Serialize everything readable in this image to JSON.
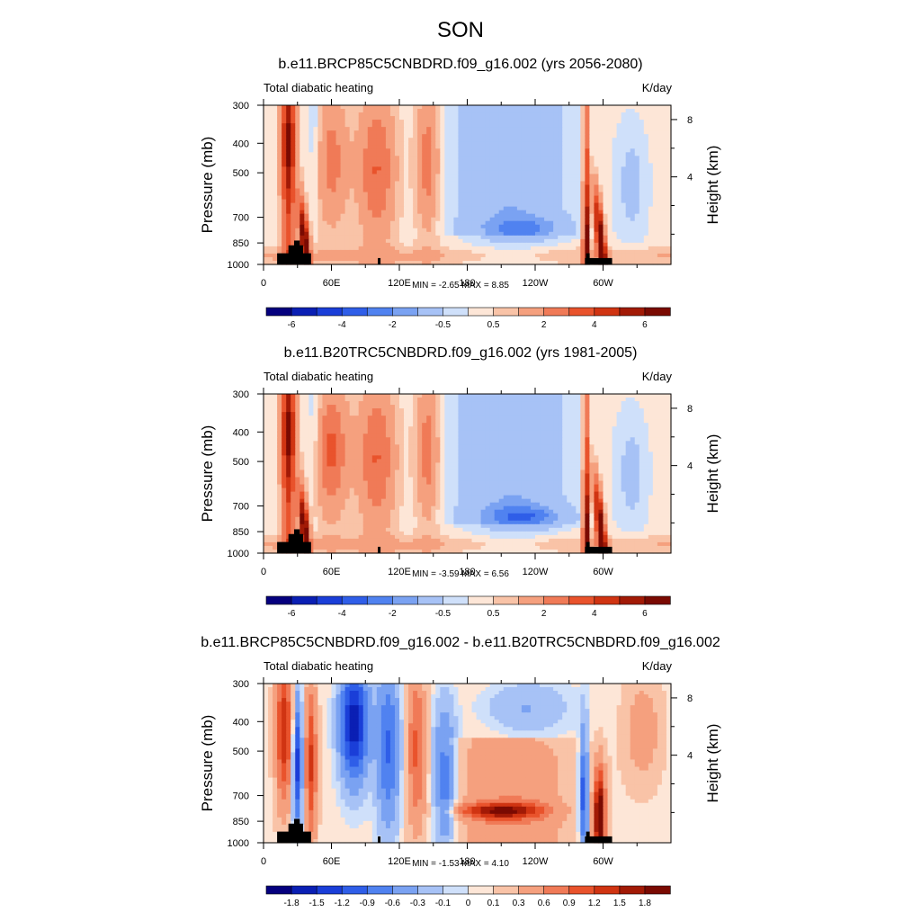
{
  "title": "SON",
  "color_palette_blue_to_red": [
    "#05007e",
    "#0a1fb4",
    "#1a3ed8",
    "#2f5ee8",
    "#5082f0",
    "#7aa2f2",
    "#a7c2f6",
    "#cfe0fa",
    "#fde6d7",
    "#f9c3a7",
    "#f5a07e",
    "#f07a57",
    "#e9532c",
    "#d03412",
    "#a21a06",
    "#7a0a02"
  ],
  "land_color": "#000000",
  "panels": [
    {
      "title": "b.e11.BRCP85C5CNBDRD.f09_g16.002 (yrs 2056-2080)",
      "left_string": "Total diabatic heating",
      "right_string": "K/day",
      "minmax": "MIN =  -2.65  MAX =   8.85",
      "chart_data": {
        "type": "heatmap",
        "variable": "Total diabatic heating",
        "units": "K/day",
        "ylabel": "Pressure (mb)",
        "ylabel_right": "Height (km)",
        "x_ticks": [
          "0",
          "60E",
          "120E",
          "180",
          "120W",
          "60W"
        ],
        "y_ticks": [
          "300",
          "400",
          "500",
          "700",
          "850",
          "1000"
        ],
        "y_ticks_right": [
          "8",
          "4"
        ],
        "colorbar_labels": [
          "-6",
          "-4",
          "-2",
          "-0.5",
          "0.5",
          "2",
          "4",
          "6"
        ],
        "min": -2.65,
        "max": 8.85
      }
    },
    {
      "title": "b.e11.B20TRC5CNBDRD.f09_g16.002 (yrs 1981-2005)",
      "left_string": "Total diabatic heating",
      "right_string": "K/day",
      "minmax": "MIN =  -3.59  MAX =   6.56",
      "chart_data": {
        "type": "heatmap",
        "variable": "Total diabatic heating",
        "units": "K/day",
        "ylabel": "Pressure (mb)",
        "ylabel_right": "Height (km)",
        "x_ticks": [
          "0",
          "60E",
          "120E",
          "180",
          "120W",
          "60W"
        ],
        "y_ticks": [
          "300",
          "400",
          "500",
          "700",
          "850",
          "1000"
        ],
        "y_ticks_right": [
          "8",
          "4"
        ],
        "colorbar_labels": [
          "-6",
          "-4",
          "-2",
          "-0.5",
          "0.5",
          "2",
          "4",
          "6"
        ],
        "min": -3.59,
        "max": 6.56
      }
    },
    {
      "title": "b.e11.BRCP85C5CNBDRD.f09_g16.002 - b.e11.B20TRC5CNBDRD.f09_g16.002",
      "left_string": "Total diabatic heating",
      "right_string": "K/day",
      "minmax": "MIN =  -1.53  MAX =   4.10",
      "chart_data": {
        "type": "heatmap",
        "variable": "Total diabatic heating",
        "units": "K/day",
        "ylabel": "Pressure (mb)",
        "ylabel_right": "Height (km)",
        "x_ticks": [
          "0",
          "60E",
          "120E",
          "180",
          "120W",
          "60W"
        ],
        "y_ticks": [
          "300",
          "400",
          "500",
          "700",
          "850",
          "1000"
        ],
        "y_ticks_right": [
          "8",
          "4"
        ],
        "colorbar_labels": [
          "-1.8",
          "-1.5",
          "-1.2",
          "-0.9",
          "-0.6",
          "-0.3",
          "-0.1",
          "0",
          "0.1",
          "0.3",
          "0.6",
          "0.9",
          "1.2",
          "1.5",
          "1.8"
        ],
        "min": -1.53,
        "max": 4.1
      }
    }
  ]
}
